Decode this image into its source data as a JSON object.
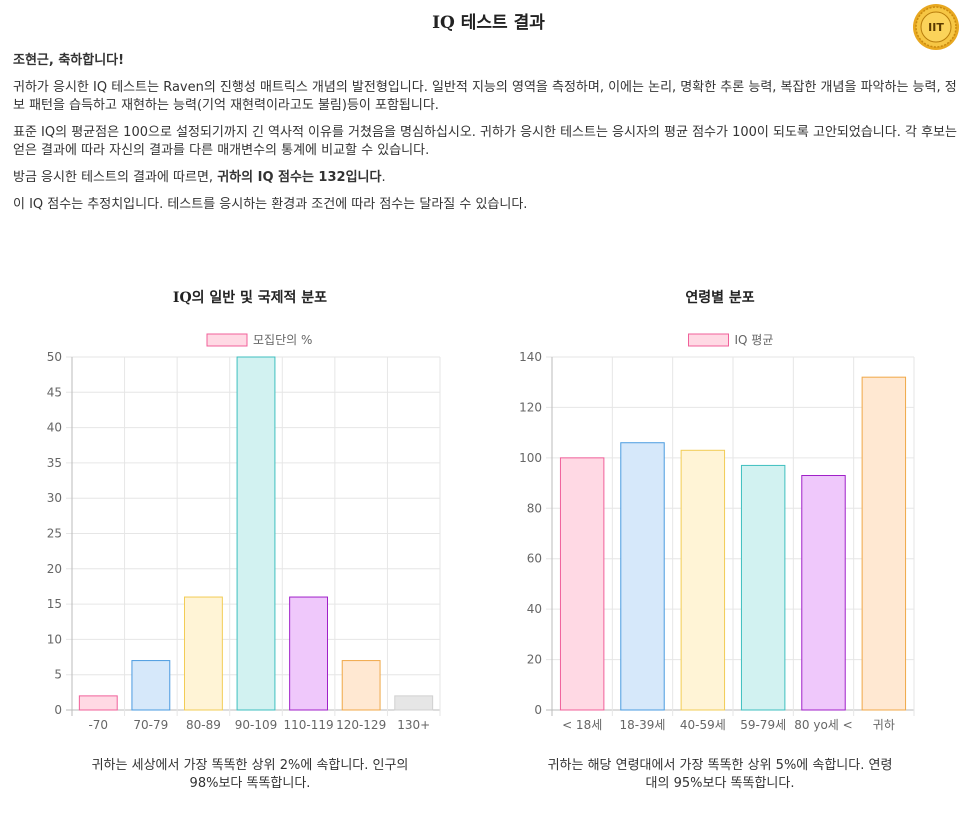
{
  "page": {
    "title": "IQ 테스트 결과",
    "badge_text": "IIT",
    "greeting": "조현근, 축하합니다!",
    "paragraph1": "귀하가 응시한 IQ 테스트는 Raven의 진행성 매트릭스 개념의 발전형입니다. 일반적 지능의 영역을 측정하며, 이에는 논리, 명확한 추론 능력, 복잡한 개념을 파악하는 능력, 정보 패턴을 습득하고 재현하는 능력(기억 재현력이라고도 불림)등이 포함됩니다.",
    "paragraph2": "표준 IQ의 평균점은 100으로 설정되기까지 긴 역사적 이유를 거쳤음을 명심하십시오. 귀하가 응시한 테스트는 응시자의 평균 점수가 100이 되도록 고안되었습니다. 각 후보는 얻은 결과에 따라 자신의 결과를 다른 매개변수의 통계에 비교할 수 있습니다.",
    "paragraph3_prefix": "방금 응시한 테스트의 결과에 따르면, ",
    "paragraph3_bold": "귀하의 IQ 점수는 132입니다",
    "paragraph3_suffix": ".",
    "paragraph4": "이 IQ 점수는 추정치입니다. 테스트를 응시하는 환경과 조건에 따라 점수는 달라질 수 있습니다.",
    "caption_left": "귀하는 세상에서 가장 똑똑한 상위 2%에 속합니다. 인구의 98%보다 똑똑합니다.",
    "caption_right": "귀하는 해당 연령대에서 가장 똑똑한 상위 5%에 속합니다. 연령대의 95%보다 똑똑합니다."
  },
  "colors": {
    "pink": {
      "fill": "#ffd9e4",
      "stroke": "#f0609a"
    },
    "blue": {
      "fill": "#d6e8fa",
      "stroke": "#4a9be0"
    },
    "yellow": {
      "fill": "#fff4d6",
      "stroke": "#f2cc55"
    },
    "teal": {
      "fill": "#d2f2f1",
      "stroke": "#3fbfbf"
    },
    "purple": {
      "fill": "#efc8fb",
      "stroke": "#a020c8"
    },
    "orange": {
      "fill": "#ffe8d2",
      "stroke": "#f0a848"
    },
    "grey": {
      "fill": "#e6e6e6",
      "stroke": "#d0d0d0"
    },
    "badge_gold": "#e8a820"
  },
  "chart_data": [
    {
      "type": "bar",
      "title": "IQ의 일반 및 국제적 분포",
      "legend": "모집단의 %",
      "legend_placement": "top",
      "categories": [
        "-70",
        "70-79",
        "80-89",
        "90-109",
        "110-119",
        "120-129",
        "130+"
      ],
      "values": [
        2,
        7,
        16,
        50,
        16,
        7,
        2
      ],
      "bar_colors": [
        "pink",
        "blue",
        "yellow",
        "teal",
        "purple",
        "orange",
        "grey"
      ],
      "ylim": [
        0,
        50
      ],
      "yticks": [
        0,
        5,
        10,
        15,
        20,
        25,
        30,
        35,
        40,
        45,
        50
      ],
      "grid": true
    },
    {
      "type": "bar",
      "title": "연령별 분포",
      "legend": "IQ 평균",
      "legend_placement": "top",
      "categories": [
        "< 18세",
        "18-39세",
        "40-59세",
        "59-79세",
        "80 yo세 <",
        "귀하"
      ],
      "values": [
        100,
        106,
        103,
        97,
        93,
        132
      ],
      "bar_colors": [
        "pink",
        "blue",
        "yellow",
        "teal",
        "purple",
        "orange"
      ],
      "ylim": [
        0,
        140
      ],
      "yticks": [
        0,
        20,
        40,
        60,
        80,
        100,
        120,
        140
      ],
      "grid": true
    }
  ]
}
